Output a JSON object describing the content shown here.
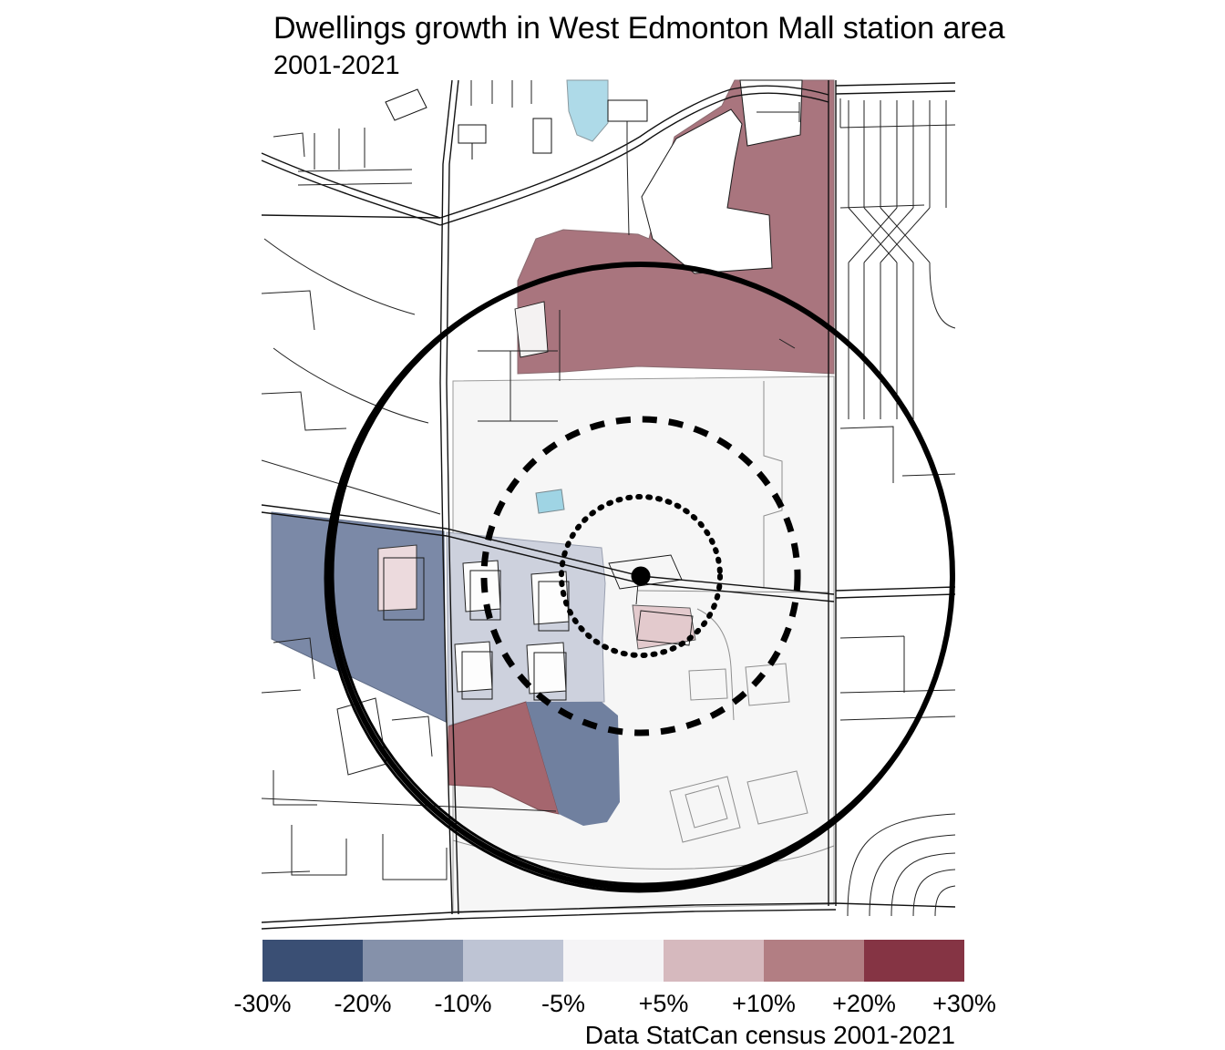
{
  "title": "Dwellings growth in West Edmonton Mall station area",
  "subtitle": "2001-2021",
  "caption": "Data StatCan census 2001-2021",
  "legend": {
    "labels": [
      "-30%",
      "-20%",
      "-10%",
      "-5%",
      "+5%",
      "+10%",
      "+20%",
      "+30%"
    ],
    "colors": [
      "#3a4f74",
      "#8591aa",
      "#bec4d4",
      "#f5f4f6",
      "#d6b9be",
      "#b27e83",
      "#853444"
    ]
  },
  "map": {
    "colors": {
      "block": "#f6f6f6",
      "water": "#aedae8",
      "water_small": "#9fd4e4",
      "growth_plus_10_20": "#a9757e",
      "growth_plus_10_20_south": "#a5666e",
      "decline_20": "#7b89a7",
      "decline_20_south": "#70809f",
      "decline_10": "#cdd1dd",
      "growth_plus_5": "#e3cacd",
      "growth_plus_5_building": "#ecdadd",
      "street": "#1a1a1a",
      "buffer": "#000000"
    }
  }
}
